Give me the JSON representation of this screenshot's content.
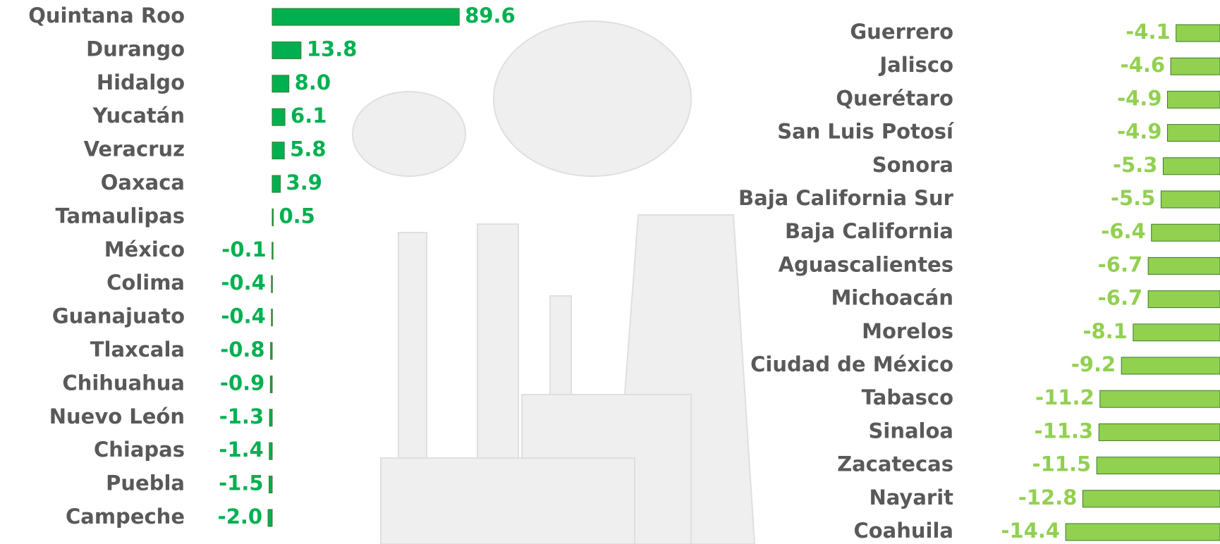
{
  "chart_data": [
    {
      "type": "hbar",
      "color": "#00b050",
      "categories": [
        "Quintana Roo",
        "Durango",
        "Hidalgo",
        "Yucatán",
        "Veracruz",
        "Oaxaca",
        "Tamaulipas",
        "México",
        "Colima",
        "Guanajuato",
        "Tlaxcala",
        "Chihuahua",
        "Nuevo León",
        "Chiapas",
        "Puebla",
        "Campeche"
      ],
      "values": [
        89.6,
        13.8,
        8.0,
        6.1,
        5.8,
        3.9,
        0.5,
        -0.1,
        -0.4,
        -0.4,
        -0.8,
        -0.9,
        -1.3,
        -1.4,
        -1.5,
        -2.0
      ],
      "value_labels": [
        "89.6",
        "13.8",
        "8.0",
        "6.1",
        "5.8",
        "3.9",
        "0.5",
        "-0.1",
        "-0.4",
        "-0.4",
        "-0.8",
        "-0.9",
        "-1.3",
        "-1.4",
        "-1.5",
        "-2.0"
      ]
    },
    {
      "type": "hbar",
      "color": "#92d050",
      "categories": [
        "Guerrero",
        "Jalisco",
        "Querétaro",
        "San Luis Potosí",
        "Sonora",
        "Baja California Sur",
        "Baja California",
        "Aguascalientes",
        "Michoacán",
        "Morelos",
        "Ciudad de México",
        "Tabasco",
        "Sinaloa",
        "Zacatecas",
        "Nayarit",
        "Coahuila"
      ],
      "values": [
        -4.1,
        -4.6,
        -4.9,
        -4.9,
        -5.3,
        -5.5,
        -6.4,
        -6.7,
        -6.7,
        -8.1,
        -9.2,
        -11.2,
        -11.3,
        -11.5,
        -12.8,
        -14.4
      ],
      "value_labels": [
        "-4.1",
        "-4.6",
        "-4.9",
        "-4.9",
        "-5.3",
        "-5.5",
        "-6.4",
        "-6.7",
        "-6.7",
        "-8.1",
        "-9.2",
        "-11.2",
        "-11.3",
        "-11.5",
        "-12.8",
        "-14.4"
      ]
    }
  ]
}
